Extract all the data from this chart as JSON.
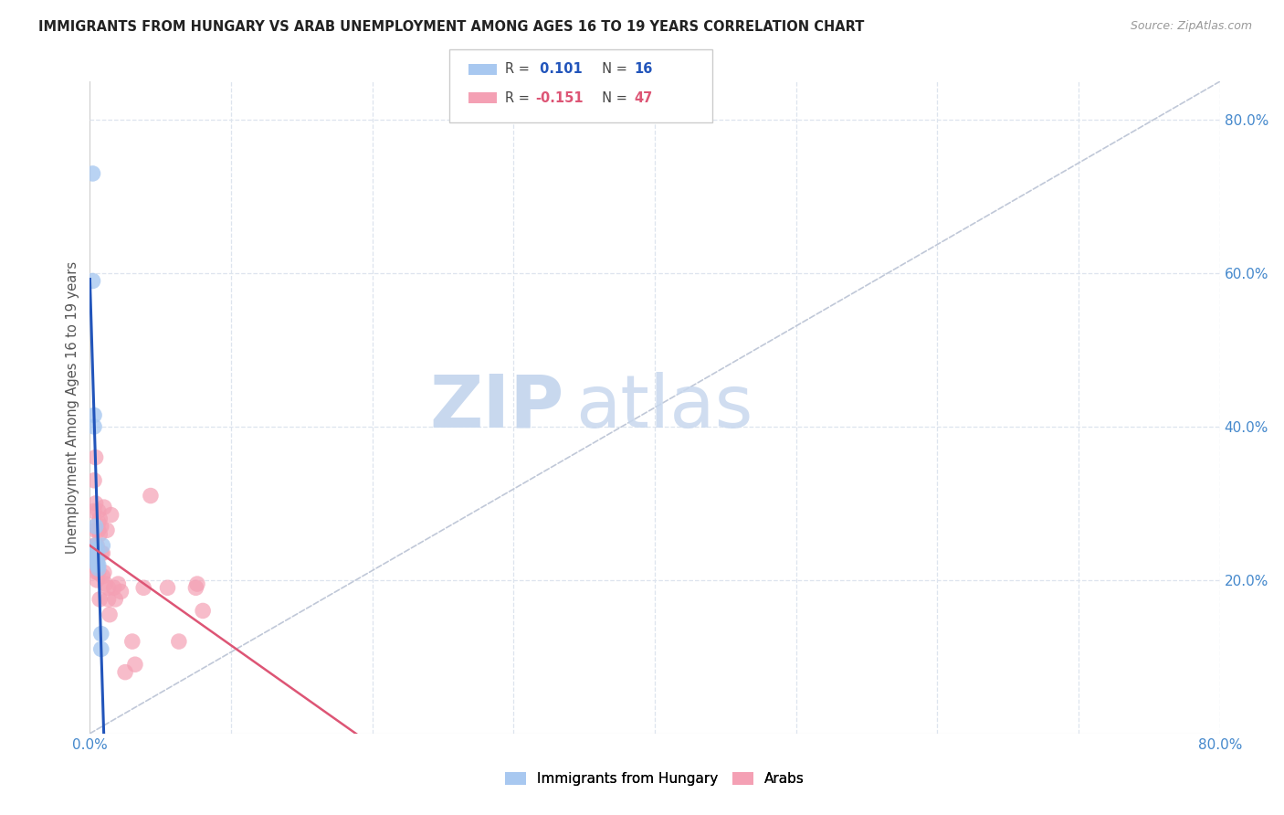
{
  "title": "IMMIGRANTS FROM HUNGARY VS ARAB UNEMPLOYMENT AMONG AGES 16 TO 19 YEARS CORRELATION CHART",
  "source": "Source: ZipAtlas.com",
  "ylabel": "Unemployment Among Ages 16 to 19 years",
  "xlim": [
    0,
    0.8
  ],
  "ylim": [
    0,
    0.85
  ],
  "legend_label1": "Immigrants from Hungary",
  "legend_label2": "Arabs",
  "hungary_color": "#a8c8f0",
  "arabs_color": "#f4a0b4",
  "hungary_trend_color": "#2255bb",
  "arabs_trend_color": "#dd5575",
  "ref_line_color": "#c0c8d8",
  "watermark_zip": "ZIP",
  "watermark_atlas": "atlas",
  "watermark_color": "#dde8f8",
  "hungary_x": [
    0.002,
    0.002,
    0.003,
    0.003,
    0.004,
    0.004,
    0.004,
    0.005,
    0.005,
    0.005,
    0.005,
    0.006,
    0.006,
    0.008,
    0.008,
    0.009
  ],
  "hungary_y": [
    0.73,
    0.59,
    0.415,
    0.4,
    0.27,
    0.245,
    0.235,
    0.24,
    0.23,
    0.225,
    0.22,
    0.22,
    0.215,
    0.13,
    0.11,
    0.245
  ],
  "arabs_x": [
    0.002,
    0.003,
    0.003,
    0.003,
    0.004,
    0.004,
    0.004,
    0.004,
    0.005,
    0.005,
    0.005,
    0.005,
    0.005,
    0.005,
    0.006,
    0.006,
    0.006,
    0.006,
    0.007,
    0.007,
    0.007,
    0.008,
    0.008,
    0.009,
    0.009,
    0.01,
    0.01,
    0.011,
    0.012,
    0.013,
    0.013,
    0.014,
    0.015,
    0.017,
    0.018,
    0.02,
    0.022,
    0.025,
    0.03,
    0.032,
    0.038,
    0.043,
    0.055,
    0.063,
    0.075,
    0.076,
    0.08
  ],
  "arabs_y": [
    0.22,
    0.33,
    0.29,
    0.245,
    0.36,
    0.3,
    0.265,
    0.245,
    0.245,
    0.23,
    0.225,
    0.215,
    0.21,
    0.2,
    0.29,
    0.275,
    0.265,
    0.21,
    0.28,
    0.26,
    0.175,
    0.27,
    0.235,
    0.235,
    0.205,
    0.295,
    0.21,
    0.195,
    0.265,
    0.19,
    0.175,
    0.155,
    0.285,
    0.19,
    0.175,
    0.195,
    0.185,
    0.08,
    0.12,
    0.09,
    0.19,
    0.31,
    0.19,
    0.12,
    0.19,
    0.195,
    0.16
  ],
  "grid_color": "#dde4ee",
  "spine_color": "#cccccc",
  "tick_label_color": "#4488cc",
  "title_color": "#222222",
  "ylabel_color": "#555555"
}
